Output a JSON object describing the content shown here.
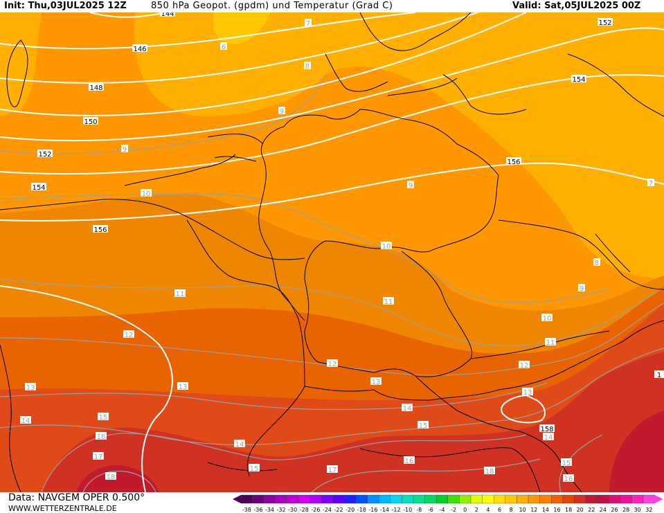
{
  "header": {
    "init": "Init: Thu,03JUL2025 12Z",
    "title": "850 hPa Geopot. (gpdm) und Temperatur (Grad C)",
    "valid": "Valid: Sat,05JUL2025 00Z"
  },
  "footer": {
    "source": "Data: NAVGEM OPER 0.500°",
    "site": "WWW.WETTERZENTRALE.DE"
  },
  "legend": {
    "ticks": [
      "-38",
      "-36",
      "-34",
      "-32",
      "-30",
      "-28",
      "-26",
      "-24",
      "-22",
      "-20",
      "-18",
      "-16",
      "-14",
      "-12",
      "-10",
      "-8",
      "-6",
      "-4",
      "-2",
      "0",
      "2",
      "4",
      "6",
      "8",
      "10",
      "12",
      "14",
      "16",
      "18",
      "20",
      "22",
      "24",
      "26",
      "28",
      "30",
      "32"
    ],
    "colors": [
      "#4b0055",
      "#6a007a",
      "#8a00a0",
      "#a800c0",
      "#c000d8",
      "#d000f0",
      "#b000ff",
      "#8000ff",
      "#5a00ff",
      "#2020ff",
      "#0050ff",
      "#0090ff",
      "#00b8ff",
      "#00d8f0",
      "#00e0c0",
      "#00e090",
      "#00d860",
      "#00d020",
      "#40e000",
      "#90f000",
      "#e0ff00",
      "#ffff00",
      "#ffe000",
      "#ffc800",
      "#ffb000",
      "#ff9800",
      "#ff8000",
      "#f06000",
      "#e04800",
      "#d03020",
      "#c01830",
      "#c0104a",
      "#d81070",
      "#f01098",
      "#ff20c0",
      "#ff40e0"
    ]
  },
  "map": {
    "colors": {
      "band_6_8": "#ffb000",
      "band_8_10": "#ff9800",
      "band_10_12": "#f08a00",
      "band_12_14": "#e86400",
      "band_14_16": "#de4a18",
      "band_16_18": "#cf3222",
      "band_18_20": "#c01a2c",
      "isotherm": "#9e9e9e",
      "isohypse": "#ffffff",
      "border": "#000000"
    },
    "isohypse_labels": [
      "144",
      "146",
      "148",
      "150",
      "152",
      "154",
      "156",
      "152",
      "154",
      "156",
      "158",
      "1"
    ],
    "isotherm_labels": [
      "7",
      "6",
      "8",
      "9",
      "9",
      "10",
      "7",
      "9",
      "10",
      "8",
      "9",
      "10",
      "11",
      "11",
      "11",
      "12",
      "12",
      "12",
      "13",
      "13",
      "13",
      "13",
      "14",
      "14",
      "14",
      "14",
      "15",
      "15",
      "15",
      "15",
      "16",
      "16",
      "16",
      "17",
      "17",
      "18",
      "18"
    ]
  }
}
